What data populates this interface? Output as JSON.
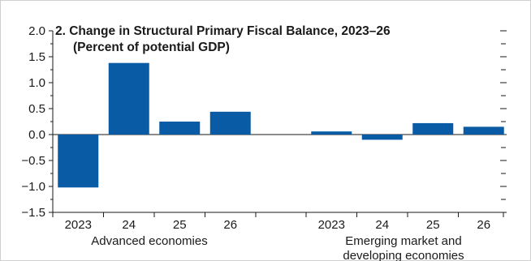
{
  "chart_data": {
    "type": "bar",
    "title": "2. Change in Structural Primary Fiscal Balance, 2023–26",
    "subtitle": "(Percent of potential GDP)",
    "ylim": [
      -1.5,
      2.0
    ],
    "yticks": [
      "2.0",
      "1.5",
      "1.0",
      "0.5",
      "0.0",
      "-0.5",
      "-1.0",
      "-1.5"
    ],
    "grid": false,
    "bar_color": "#0a5ba6",
    "groups": [
      {
        "name": "Advanced economies",
        "categories": [
          "2023",
          "24",
          "25",
          "26"
        ],
        "values": [
          -1.02,
          1.38,
          0.25,
          0.44
        ]
      },
      {
        "name_lines": [
          "Emerging market and",
          "developing economies"
        ],
        "categories": [
          "2023",
          "24",
          "25",
          "26"
        ],
        "values": [
          0.06,
          -0.1,
          0.22,
          0.15
        ]
      }
    ]
  }
}
